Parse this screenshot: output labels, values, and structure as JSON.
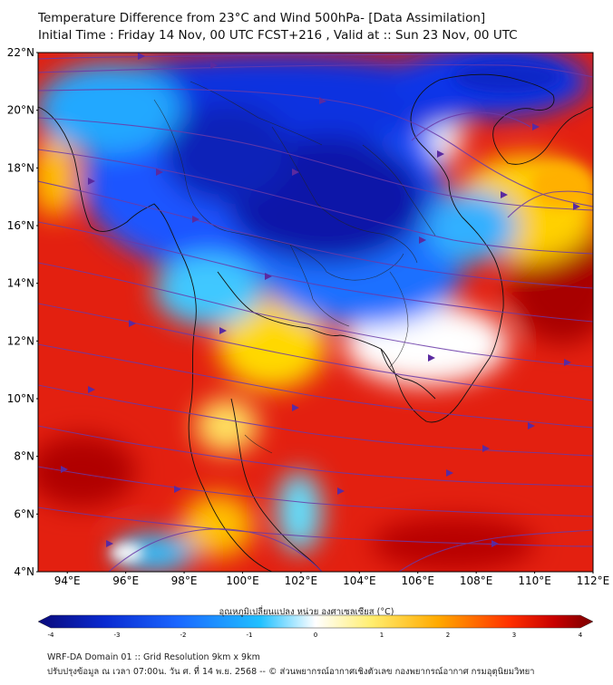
{
  "header": {
    "title_line1": "Temperature Difference from 23°C and Wind 500hPa- [Data Assimilation]",
    "title_line2": "Initial Time : Friday 14 Nov, 00 UTC FCST+216 , Valid at ::  Sun 23 Nov, 00 UTC"
  },
  "map": {
    "lat_ticks": [
      "22°N",
      "20°N",
      "18°N",
      "16°N",
      "14°N",
      "12°N",
      "10°N",
      "8°N",
      "6°N",
      "4°N"
    ],
    "lon_ticks": [
      "94°E",
      "96°E",
      "98°E",
      "100°E",
      "102°E",
      "104°E",
      "106°E",
      "108°E",
      "110°E",
      "112°E"
    ],
    "extent": {
      "lon": [
        93,
        112
      ],
      "lat": [
        4,
        22
      ]
    }
  },
  "colorbar": {
    "label": "อุณหภูมิเปลี่ยนแปลง หน่วย องศาเซลเซียส (°C)",
    "ticks": [
      "-4",
      "-3",
      "-2",
      "-1",
      "0",
      "1",
      "2",
      "3",
      "4"
    ],
    "range": [
      -4,
      4
    ],
    "colors": [
      "#0a0a7a",
      "#0a2ad0",
      "#1a66ff",
      "#20c0ff",
      "#ffffff",
      "#ffee70",
      "#ffaa00",
      "#ff3000",
      "#c80000",
      "#7a0000"
    ]
  },
  "footer": {
    "line1": "WRF-DA Domain 01 :: Grid Resolution 9km x 9km",
    "line2": "ปรับปรุงข้อมูล ณ เวลา 07:00น. วัน ศ. ที่ 14 พ.ย. 2568 -- © ส่วนพยากรณ์อากาศเชิงตัวเลข กองพยากรณ์อากาศ กรมอุตุนิยมวิทยา"
  }
}
